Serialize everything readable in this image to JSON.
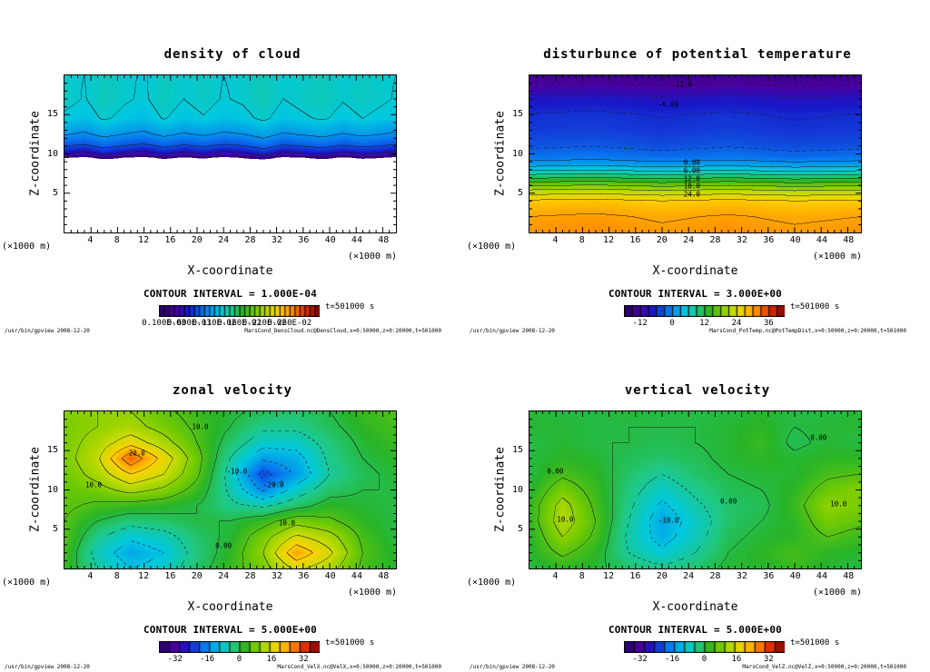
{
  "chart_data": [
    {
      "type": "heatmap",
      "title": "density of cloud",
      "xlabel": "X-coordinate",
      "ylabel": "Z-coordinate",
      "x_unit_label": "(×1000 m)",
      "y_unit_label": "(×1000 m)",
      "x_range": [
        0,
        50
      ],
      "z_range": [
        0,
        20
      ],
      "x_ticks_labeled": [
        4,
        8,
        12,
        16,
        20,
        24,
        28,
        32,
        36,
        40,
        44,
        48
      ],
      "y_ticks_labeled": [
        5,
        10,
        15
      ],
      "contour_interval_label": "CONTOUR INTERVAL = 1.000E-04",
      "contour_interval_value": 0.1,
      "value_scale": 0.001,
      "time_label": "t=501000 s",
      "footer_left": "/usr/bin/gpview  2008-12-20",
      "footer_right": "MarsCond_DensCloud.nc@DensCloud,x=0:50000,z=0:20000,t=501000",
      "colorbar": {
        "min": 0,
        "max": 3.2,
        "tick_values": [
          0.1,
          0.6,
          1.1,
          1.6,
          2.1,
          2.6
        ],
        "tick_labels": [
          "0.100E-03",
          "0.600E-03",
          "0.110E-02",
          "0.160E-02",
          "0.210E-02",
          "0.260E-02"
        ]
      },
      "contour_labels": [],
      "field": {
        "white_below": 0.1,
        "x": [
          0,
          3,
          6,
          9,
          12,
          15,
          18,
          21,
          24,
          27,
          30,
          33,
          36,
          39,
          42,
          45,
          48,
          50
        ],
        "z": [
          0,
          9.2,
          9.5,
          9.8,
          10.4,
          11.2,
          12.5,
          14.5,
          17,
          20
        ],
        "values": [
          [
            0,
            0,
            0,
            0,
            0,
            0,
            0,
            0,
            0,
            0,
            0,
            0,
            0,
            0,
            0,
            0,
            0,
            0
          ],
          [
            0,
            0,
            0,
            0,
            0,
            0,
            0,
            0,
            0,
            0,
            0,
            0,
            0,
            0,
            0,
            0,
            0,
            0
          ],
          [
            0.12,
            0,
            0.22,
            0.08,
            0,
            0.18,
            0.05,
            0.15,
            0,
            0.12,
            0.25,
            0,
            0.08,
            0.2,
            0.04,
            0.16,
            0.1,
            0
          ],
          [
            0.42,
            0.3,
            0.5,
            0.36,
            0.28,
            0.46,
            0.32,
            0.44,
            0.3,
            0.38,
            0.52,
            0.34,
            0.4,
            0.48,
            0.34,
            0.44,
            0.38,
            0.32
          ],
          [
            0.62,
            0.55,
            0.68,
            0.6,
            0.52,
            0.66,
            0.56,
            0.63,
            0.54,
            0.6,
            0.7,
            0.57,
            0.62,
            0.67,
            0.58,
            0.64,
            0.6,
            0.55
          ],
          [
            0.8,
            0.76,
            0.86,
            0.79,
            0.74,
            0.84,
            0.77,
            0.82,
            0.75,
            0.79,
            0.88,
            0.77,
            0.81,
            0.85,
            0.78,
            0.83,
            0.79,
            0.76
          ],
          [
            1.02,
            0.97,
            1.06,
            1.0,
            0.96,
            1.05,
            0.98,
            1.03,
            0.97,
            1.0,
            1.08,
            0.98,
            1.02,
            1.06,
            0.99,
            1.04,
            1.0,
            0.97
          ],
          [
            1.22,
            1.18,
            1.27,
            1.21,
            1.17,
            1.26,
            1.19,
            1.24,
            1.18,
            1.21,
            1.28,
            1.19,
            1.23,
            1.27,
            1.2,
            1.25,
            1.21,
            1.18
          ],
          [
            1.3,
            1.24,
            1.33,
            1.27,
            1.23,
            1.32,
            1.25,
            1.3,
            1.24,
            1.27,
            1.34,
            1.25,
            1.29,
            1.33,
            1.26,
            1.31,
            1.27,
            1.24
          ],
          [
            1.28,
            1.25,
            1.31,
            1.27,
            1.24,
            1.3,
            1.26,
            1.29,
            1.25,
            1.27,
            1.32,
            1.26,
            1.28,
            1.31,
            1.26,
            1.3,
            1.27,
            1.25
          ]
        ]
      }
    },
    {
      "type": "heatmap",
      "title": "disturbunce of potential temperature",
      "xlabel": "X-coordinate",
      "ylabel": "Z-coordinate",
      "x_unit_label": "(×1000 m)",
      "y_unit_label": "(×1000 m)",
      "x_range": [
        0,
        50
      ],
      "z_range": [
        0,
        20
      ],
      "x_ticks_labeled": [
        4,
        8,
        12,
        16,
        20,
        24,
        28,
        32,
        36,
        40,
        44,
        48
      ],
      "y_ticks_labeled": [
        5,
        10,
        15
      ],
      "contour_interval_label": "CONTOUR INTERVAL = 3.000E+00",
      "contour_interval_value": 3,
      "time_label": "t=501000 s",
      "footer_left": "/usr/bin/gpview  2008-12-20",
      "footer_right": "MarsCond_PotTemp.nc@PotTempDist,x=0:50000,z=0:20000,t=501000",
      "colorbar": {
        "min": -18,
        "max": 42,
        "tick_values": [
          -12,
          0,
          12,
          24,
          36
        ],
        "tick_labels": [
          "-12",
          "0",
          "12",
          "24",
          "36"
        ]
      },
      "contour_labels": [
        {
          "text": "-12.0",
          "x": 23,
          "z": 18.8
        },
        {
          "text": "-6.00",
          "x": 21,
          "z": 16.2
        },
        {
          "text": "0.00",
          "x": 24.5,
          "z": 8.9
        },
        {
          "text": "6.00",
          "x": 24.5,
          "z": 7.9
        },
        {
          "text": "12.0",
          "x": 24.5,
          "z": 6.9
        },
        {
          "text": "18.0",
          "x": 24.5,
          "z": 5.9
        },
        {
          "text": "24.0",
          "x": 24.5,
          "z": 4.9
        }
      ],
      "field": {
        "x": [
          0,
          10,
          20,
          30,
          40,
          50
        ],
        "z": [
          0,
          2,
          4,
          4.8,
          5.6,
          6.4,
          7.2,
          8,
          8.8,
          9.6,
          11,
          13,
          15,
          17,
          18.5,
          20
        ],
        "values": [
          [
            31,
            31.5,
            30.6,
            31.2,
            30.5,
            31
          ],
          [
            30,
            30.5,
            29.6,
            30.3,
            29.5,
            30
          ],
          [
            27.5,
            28,
            27,
            27.8,
            27,
            27.4
          ],
          [
            24,
            24.5,
            23.6,
            24.3,
            23.5,
            24
          ],
          [
            20,
            20.6,
            19.5,
            20.4,
            19.4,
            20
          ],
          [
            15,
            15.6,
            14.5,
            15.4,
            14.4,
            15
          ],
          [
            10,
            10.6,
            9.5,
            10.4,
            9.4,
            10
          ],
          [
            5,
            5.6,
            4.5,
            5.4,
            4.4,
            5
          ],
          [
            1,
            1.5,
            0.6,
            1.3,
            0.5,
            1
          ],
          [
            -1.5,
            -1,
            -1.9,
            -1.2,
            -2,
            -1.5
          ],
          [
            -3.5,
            -3.1,
            -3.9,
            -3.2,
            -4,
            -3.6
          ],
          [
            -5,
            -4.7,
            -5.4,
            -4.8,
            -5.5,
            -5.1
          ],
          [
            -5.8,
            -5.5,
            -6.2,
            -5.6,
            -6.3,
            -5.9
          ],
          [
            -8,
            -7.6,
            -8.4,
            -7.7,
            -8.5,
            -8.1
          ],
          [
            -11.5,
            -11,
            -11.9,
            -11.2,
            -12,
            -11.6
          ],
          [
            -13.8,
            -13.4,
            -14.2,
            -13.5,
            -14.3,
            -13.9
          ]
        ]
      }
    },
    {
      "type": "heatmap",
      "title": "zonal velocity",
      "xlabel": "X-coordinate",
      "ylabel": "Z-coordinate",
      "x_unit_label": "(×1000 m)",
      "y_unit_label": "(×1000 m)",
      "x_range": [
        0,
        50
      ],
      "z_range": [
        0,
        20
      ],
      "x_ticks_labeled": [
        4,
        8,
        12,
        16,
        20,
        24,
        28,
        32,
        36,
        40,
        44,
        48
      ],
      "y_ticks_labeled": [
        5,
        10,
        15
      ],
      "contour_interval_label": "CONTOUR INTERVAL = 5.000E+00",
      "contour_interval_value": 5,
      "time_label": "t=501000 s",
      "footer_left": "/usr/bin/gpview  2008-12-20",
      "footer_right": "MarsCond_VelX.nc@VelX,x=0:50000,z=0:20000,t=501000",
      "colorbar": {
        "min": -40,
        "max": 40,
        "tick_values": [
          -32,
          -16,
          0,
          16,
          32
        ],
        "tick_labels": [
          "-32",
          "-16",
          "0",
          "16",
          "32"
        ]
      },
      "contour_labels": [
        {
          "text": "20.0",
          "x": 11,
          "z": 14.6
        },
        {
          "text": "10.0",
          "x": 4.5,
          "z": 10.6
        },
        {
          "text": "10.0",
          "x": 20.5,
          "z": 18.0
        },
        {
          "text": "-10.0",
          "x": 26,
          "z": 12.4
        },
        {
          "text": "-20.0",
          "x": 31.5,
          "z": 10.6
        },
        {
          "text": "0.00",
          "x": 24,
          "z": 3.0
        },
        {
          "text": "10.0",
          "x": 33.5,
          "z": 5.8
        }
      ],
      "field": {
        "x": [
          0,
          5,
          10,
          15,
          20,
          25,
          30,
          35,
          40,
          45,
          50
        ],
        "z": [
          0,
          2,
          4,
          6,
          8,
          10,
          12,
          14,
          16,
          18,
          20
        ],
        "values": [
          [
            3,
            -5,
            -10,
            -8,
            -2,
            3,
            8,
            16,
            12,
            4,
            1
          ],
          [
            4,
            -7,
            -13,
            -10,
            -3,
            2,
            10,
            24,
            16,
            5,
            1
          ],
          [
            5,
            -4,
            -9,
            -7,
            -2,
            1,
            8,
            16,
            12,
            4,
            0
          ],
          [
            5,
            0,
            -3,
            -2,
            0,
            0,
            3,
            8,
            6,
            2,
            0
          ],
          [
            6,
            4,
            3,
            2,
            0,
            -4,
            -6,
            -2,
            2,
            1,
            0
          ],
          [
            6,
            8,
            12,
            9,
            3,
            -6,
            -16,
            -8,
            -2,
            0,
            0
          ],
          [
            7,
            12,
            20,
            15,
            6,
            -7,
            -22,
            -14,
            -5,
            -1,
            1
          ],
          [
            8,
            14,
            29,
            18,
            7,
            -5,
            -14,
            -12,
            -4,
            0,
            2
          ],
          [
            8,
            12,
            18,
            12,
            5,
            -2,
            -8,
            -8,
            -3,
            1,
            3
          ],
          [
            8,
            10,
            12,
            8,
            4,
            0,
            -4,
            -4,
            -1,
            2,
            4
          ],
          [
            9,
            10,
            10,
            6,
            3,
            1,
            -1,
            -2,
            0,
            3,
            5
          ]
        ]
      }
    },
    {
      "type": "heatmap",
      "title": "vertical velocity",
      "xlabel": "X-coordinate",
      "ylabel": "Z-coordinate",
      "x_unit_label": "(×1000 m)",
      "y_unit_label": "(×1000 m)",
      "x_range": [
        0,
        50
      ],
      "z_range": [
        0,
        20
      ],
      "x_ticks_labeled": [
        4,
        8,
        12,
        16,
        20,
        24,
        28,
        32,
        36,
        40,
        44,
        48
      ],
      "y_ticks_labeled": [
        5,
        10,
        15
      ],
      "contour_interval_label": "CONTOUR INTERVAL = 5.000E+00",
      "contour_interval_value": 5,
      "time_label": "t=501000 s",
      "footer_left": "/usr/bin/gpview  2008-12-20",
      "footer_right": "MarsCond_VelZ.nc@VelZ,x=0:50000,z=0:20000,t=501000",
      "colorbar": {
        "min": -40,
        "max": 40,
        "tick_values": [
          -32,
          -16,
          0,
          16,
          32
        ],
        "tick_labels": [
          "-32",
          "-16",
          "0",
          "16",
          "32"
        ]
      },
      "contour_labels": [
        {
          "text": "0.00",
          "x": 4,
          "z": 12.3
        },
        {
          "text": "10.0",
          "x": 5.5,
          "z": 6.3
        },
        {
          "text": "-10.0",
          "x": 21,
          "z": 6.2
        },
        {
          "text": "0.00",
          "x": 30,
          "z": 8.6
        },
        {
          "text": "0.00",
          "x": 43.5,
          "z": 16.6
        },
        {
          "text": "10.0",
          "x": 46.5,
          "z": 8.2
        }
      ],
      "field": {
        "x": [
          0,
          5,
          10,
          15,
          20,
          25,
          30,
          35,
          40,
          45,
          50
        ],
        "z": [
          0,
          2,
          4,
          6,
          8,
          10,
          12,
          14,
          16,
          18,
          20
        ],
        "values": [
          [
            0,
            2,
            1,
            -2,
            -4,
            -2,
            1,
            1,
            3,
            1,
            0
          ],
          [
            1,
            6,
            2,
            -5,
            -9,
            -5,
            0,
            2,
            4,
            2,
            1
          ],
          [
            1,
            10,
            4,
            -6,
            -12,
            -7,
            -1,
            1,
            2,
            5,
            3
          ],
          [
            2,
            13,
            5,
            -5,
            -13,
            -8,
            -2,
            0,
            2,
            8,
            6
          ],
          [
            2,
            12,
            4,
            -4,
            -11,
            -6,
            -2,
            -1,
            3,
            10,
            8
          ],
          [
            1,
            8,
            3,
            -3,
            -8,
            -4,
            -1,
            0,
            2,
            7,
            9
          ],
          [
            0,
            4,
            2,
            -2,
            -5,
            -2,
            0,
            1,
            1,
            4,
            5
          ],
          [
            0,
            2,
            1,
            -1,
            -2,
            -1,
            1,
            2,
            1,
            2,
            2
          ],
          [
            0,
            1,
            0,
            0,
            -1,
            0,
            1,
            3,
            -1,
            1,
            0
          ],
          [
            1,
            1,
            0,
            0,
            0,
            0,
            1,
            2,
            0,
            1,
            1
          ],
          [
            1,
            0,
            0,
            1,
            0,
            0,
            0,
            1,
            0,
            0,
            1
          ]
        ]
      }
    }
  ]
}
